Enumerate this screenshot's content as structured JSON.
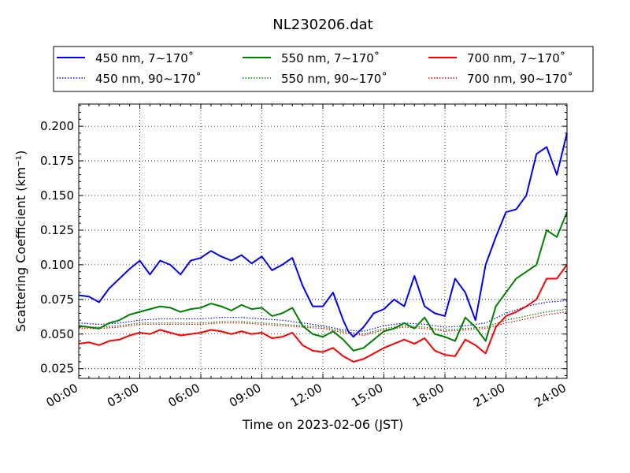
{
  "chart_data": {
    "type": "line",
    "title": "NL230206.dat",
    "xlabel": "Time on 2023-02-06 (JST)",
    "ylabel": "Scattering Coefficient (km⁻¹)",
    "x_unit": "hours",
    "xlim": [
      0,
      24
    ],
    "ylim": [
      0.018,
      0.216
    ],
    "x_ticks": [
      0,
      3,
      6,
      9,
      12,
      15,
      18,
      21,
      24
    ],
    "x_tick_labels": [
      "00:00",
      "03:00",
      "06:00",
      "09:00",
      "12:00",
      "15:00",
      "18:00",
      "21:00",
      "24:00"
    ],
    "y_ticks": [
      0.025,
      0.05,
      0.075,
      0.1,
      0.125,
      0.15,
      0.175,
      0.2
    ],
    "y_tick_labels": [
      "0.025",
      "0.050",
      "0.075",
      "0.100",
      "0.125",
      "0.150",
      "0.175",
      "0.200"
    ],
    "grid": true,
    "legend_position": "top (above plot)",
    "series": [
      {
        "name": "450 nm, 7∼170˚",
        "color": "#0000ff",
        "style": "solid",
        "x": [
          0,
          0.5,
          1,
          1.5,
          2,
          2.5,
          3,
          3.5,
          4,
          4.5,
          5,
          5.5,
          6,
          6.5,
          7,
          7.5,
          8,
          8.5,
          9,
          9.5,
          10,
          10.5,
          11,
          11.5,
          12,
          12.5,
          13,
          13.25,
          13.5,
          14,
          14.5,
          15,
          15.5,
          16,
          16.5,
          17,
          17.5,
          18,
          18.5,
          19,
          19.5,
          20,
          20.5,
          21,
          21.5,
          22,
          22.5,
          23,
          23.5,
          24
        ],
        "y": [
          0.078,
          0.077,
          0.073,
          0.083,
          0.09,
          0.097,
          0.103,
          0.093,
          0.103,
          0.1,
          0.093,
          0.103,
          0.105,
          0.11,
          0.106,
          0.103,
          0.107,
          0.101,
          0.106,
          0.096,
          0.1,
          0.105,
          0.085,
          0.07,
          0.07,
          0.08,
          0.06,
          0.052,
          0.048,
          0.055,
          0.065,
          0.068,
          0.075,
          0.07,
          0.092,
          0.07,
          0.065,
          0.063,
          0.09,
          0.08,
          0.06,
          0.1,
          0.12,
          0.138,
          0.14,
          0.15,
          0.18,
          0.185,
          0.165,
          0.195
        ]
      },
      {
        "name": "450 nm, 90∼170˚",
        "color": "#0000ff",
        "style": "dotted",
        "x": [
          0,
          1,
          2,
          3,
          4,
          5,
          6,
          7,
          8,
          9,
          10,
          11,
          12,
          13,
          14,
          15,
          16,
          17,
          18,
          19,
          20,
          21,
          22,
          23,
          24
        ],
        "y": [
          0.058,
          0.057,
          0.058,
          0.06,
          0.061,
          0.061,
          0.061,
          0.062,
          0.062,
          0.061,
          0.06,
          0.058,
          0.056,
          0.053,
          0.052,
          0.056,
          0.058,
          0.057,
          0.055,
          0.056,
          0.058,
          0.065,
          0.07,
          0.073,
          0.074
        ]
      },
      {
        "name": "550 nm, 7∼170˚",
        "color": "#008000",
        "style": "solid",
        "x": [
          0,
          0.5,
          1,
          1.5,
          2,
          2.5,
          3,
          3.5,
          4,
          4.5,
          5,
          5.5,
          6,
          6.5,
          7,
          7.5,
          8,
          8.5,
          9,
          9.5,
          10,
          10.5,
          11,
          11.5,
          12,
          12.5,
          13,
          13.5,
          14,
          14.5,
          15,
          15.5,
          16,
          16.5,
          17,
          17.5,
          18,
          18.5,
          19,
          19.5,
          20,
          20.5,
          21,
          21.5,
          22,
          22.5,
          23,
          23.5,
          24
        ],
        "y": [
          0.056,
          0.055,
          0.054,
          0.058,
          0.06,
          0.064,
          0.066,
          0.068,
          0.07,
          0.069,
          0.066,
          0.068,
          0.069,
          0.072,
          0.07,
          0.067,
          0.071,
          0.068,
          0.069,
          0.063,
          0.065,
          0.069,
          0.056,
          0.05,
          0.048,
          0.052,
          0.046,
          0.038,
          0.04,
          0.046,
          0.052,
          0.054,
          0.058,
          0.054,
          0.062,
          0.05,
          0.048,
          0.045,
          0.062,
          0.055,
          0.045,
          0.07,
          0.08,
          0.09,
          0.095,
          0.1,
          0.125,
          0.12,
          0.138
        ]
      },
      {
        "name": "550 nm, 90∼170˚",
        "color": "#008000",
        "style": "dotted",
        "x": [
          0,
          1,
          2,
          3,
          4,
          5,
          6,
          7,
          8,
          9,
          10,
          11,
          12,
          13,
          14,
          15,
          16,
          17,
          18,
          19,
          20,
          21,
          22,
          23,
          24
        ],
        "y": [
          0.055,
          0.055,
          0.056,
          0.058,
          0.058,
          0.058,
          0.058,
          0.059,
          0.059,
          0.058,
          0.057,
          0.056,
          0.055,
          0.052,
          0.05,
          0.054,
          0.056,
          0.055,
          0.053,
          0.054,
          0.055,
          0.06,
          0.063,
          0.066,
          0.068
        ]
      },
      {
        "name": "700 nm, 7∼170˚",
        "color": "#ff0000",
        "style": "solid",
        "x": [
          0,
          0.5,
          1,
          1.5,
          2,
          2.5,
          3,
          3.5,
          4,
          4.5,
          5,
          5.5,
          6,
          6.5,
          7,
          7.5,
          8,
          8.5,
          9,
          9.5,
          10,
          10.5,
          11,
          11.5,
          12,
          12.5,
          13,
          13.5,
          14,
          14.5,
          15,
          15.5,
          16,
          16.5,
          17,
          17.5,
          18,
          18.5,
          19,
          19.5,
          20,
          20.5,
          21,
          21.5,
          22,
          22.5,
          23,
          23.5,
          24
        ],
        "y": [
          0.043,
          0.044,
          0.042,
          0.045,
          0.046,
          0.049,
          0.051,
          0.05,
          0.053,
          0.051,
          0.049,
          0.05,
          0.051,
          0.053,
          0.052,
          0.05,
          0.052,
          0.05,
          0.051,
          0.047,
          0.048,
          0.051,
          0.042,
          0.038,
          0.037,
          0.04,
          0.034,
          0.03,
          0.032,
          0.036,
          0.04,
          0.043,
          0.046,
          0.043,
          0.047,
          0.038,
          0.035,
          0.034,
          0.046,
          0.042,
          0.036,
          0.055,
          0.063,
          0.066,
          0.07,
          0.075,
          0.09,
          0.09,
          0.1
        ]
      },
      {
        "name": "700 nm, 90∼170˚",
        "color": "#ff0000",
        "style": "dotted",
        "x": [
          0,
          1,
          2,
          3,
          4,
          5,
          6,
          7,
          8,
          9,
          10,
          11,
          12,
          13,
          14,
          15,
          16,
          17,
          18,
          19,
          20,
          21,
          22,
          23,
          24
        ],
        "y": [
          0.054,
          0.054,
          0.055,
          0.057,
          0.057,
          0.057,
          0.057,
          0.058,
          0.058,
          0.057,
          0.056,
          0.055,
          0.054,
          0.051,
          0.049,
          0.053,
          0.055,
          0.054,
          0.052,
          0.053,
          0.054,
          0.058,
          0.061,
          0.064,
          0.066
        ]
      }
    ]
  }
}
